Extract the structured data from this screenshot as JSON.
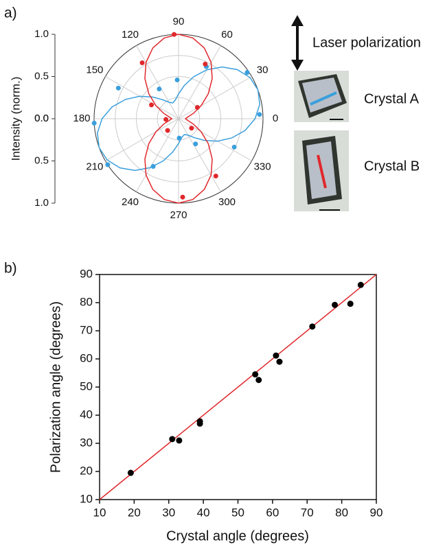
{
  "chart_data": [
    {
      "type": "polar",
      "panel": "a)",
      "ylabel": "Intensity (norm.)",
      "legend_title": "Laser polarization",
      "rlim": [
        0,
        1
      ],
      "rticks": [
        {
          "value": 1,
          "label": "1.0"
        },
        {
          "value": 0.5,
          "label": "0.5"
        },
        {
          "value": 0,
          "label": "0.0"
        }
      ],
      "rgrid": [
        0.25,
        0.5,
        0.75,
        1
      ],
      "angle_ticks": [
        0,
        30,
        60,
        90,
        120,
        150,
        180,
        210,
        240,
        270,
        300,
        330
      ],
      "series": [
        {
          "name": "Crystal A",
          "color": "#3a9fdc",
          "theta": [
            3,
            34,
            62,
            92,
            123,
            153,
            183,
            213,
            242,
            272,
            304,
            333
          ],
          "r": [
            0.96,
            0.98,
            0.7,
            0.46,
            0.42,
            0.8,
            1.0,
            1.0,
            0.64,
            0.23,
            0.36,
            0.74
          ],
          "fit": {
            "theta": [
              0,
              10,
              20,
              30,
              40,
              50,
              60,
              70,
              80,
              90,
              100,
              110,
              120,
              130,
              140,
              150,
              160,
              170,
              180,
              190,
              200,
              210,
              220,
              230,
              240,
              250,
              260,
              270,
              280,
              290,
              300,
              310,
              320,
              330,
              340,
              350,
              360
            ],
            "r": [
              0.906,
              0.976,
              1.0,
              0.976,
              0.906,
              0.8,
              0.669,
              0.531,
              0.4,
              0.294,
              0.224,
              0.2,
              0.224,
              0.294,
              0.4,
              0.531,
              0.669,
              0.8,
              0.906,
              0.976,
              1.0,
              0.976,
              0.906,
              0.8,
              0.669,
              0.531,
              0.4,
              0.294,
              0.224,
              0.2,
              0.224,
              0.294,
              0.4,
              0.531,
              0.669,
              0.8,
              0.906
            ]
          }
        },
        {
          "name": "Crystal B",
          "color": "#e0282c",
          "theta": [
            93,
            123,
            153,
            183,
            227,
            273,
            303,
            324,
            31,
            64
          ],
          "r": [
            1.0,
            0.79,
            0.36,
            0.15,
            0.19,
            0.93,
            0.81,
            0.19,
            0.26,
            0.72
          ],
          "fit": {
            "theta": [
              0,
              10,
              20,
              30,
              40,
              50,
              60,
              70,
              80,
              90,
              100,
              110,
              120,
              130,
              140,
              150,
              160,
              170,
              180,
              190,
              200,
              210,
              220,
              230,
              240,
              250,
              260,
              270,
              280,
              290,
              300,
              310,
              320,
              330,
              340,
              350,
              360
            ],
            "r": [
              0.08,
              0.108,
              0.188,
              0.31,
              0.46,
              0.62,
              0.77,
              0.892,
              0.972,
              1.0,
              0.972,
              0.892,
              0.77,
              0.62,
              0.46,
              0.31,
              0.188,
              0.108,
              0.08,
              0.108,
              0.188,
              0.31,
              0.46,
              0.62,
              0.77,
              0.892,
              0.972,
              1.0,
              0.972,
              0.892,
              0.77,
              0.62,
              0.46,
              0.31,
              0.188,
              0.108,
              0.08
            ]
          }
        }
      ]
    },
    {
      "type": "scatter",
      "panel": "b)",
      "xlabel": "Crystal angle (degrees)",
      "ylabel": "Polarization angle (degrees)",
      "xlim": [
        10,
        90
      ],
      "ylim": [
        10,
        90
      ],
      "xticks": [
        10,
        20,
        30,
        40,
        50,
        60,
        70,
        80,
        90
      ],
      "yticks": [
        10,
        20,
        30,
        40,
        50,
        60,
        70,
        80,
        90
      ],
      "color": "#000000",
      "x": [
        19,
        31,
        33,
        39,
        39,
        55,
        56,
        61,
        62,
        71.5,
        78,
        82.5,
        85.5
      ],
      "y": [
        19.5,
        31.5,
        31,
        37.8,
        37,
        54.5,
        52.5,
        61.2,
        59,
        71.5,
        79.2,
        79.6,
        86.3
      ],
      "fit": {
        "color": "#e0282c",
        "x": [
          10,
          90
        ],
        "y": [
          10,
          90
        ]
      }
    }
  ]
}
